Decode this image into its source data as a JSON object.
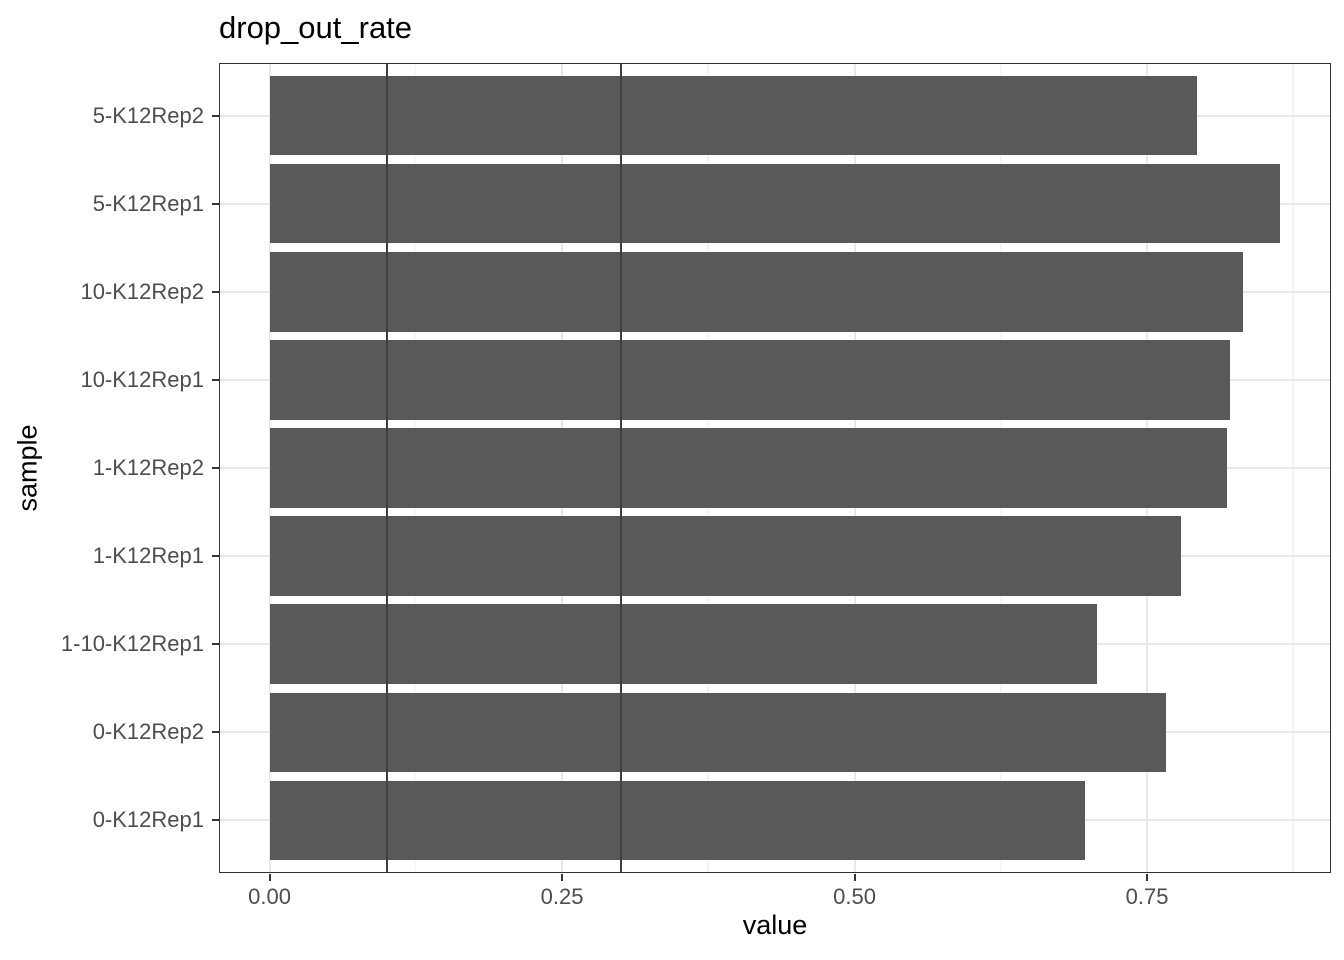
{
  "chart_data": {
    "type": "bar",
    "orientation": "horizontal",
    "title": "drop_out_rate",
    "xlabel": "value",
    "ylabel": "sample",
    "categories": [
      "5-K12Rep2",
      "5-K12Rep1",
      "10-K12Rep2",
      "10-K12Rep1",
      "1-K12Rep2",
      "1-K12Rep1",
      "1-10-K12Rep1",
      "0-K12Rep2",
      "0-K12Rep1"
    ],
    "values": [
      0.793,
      0.864,
      0.832,
      0.821,
      0.818,
      0.779,
      0.707,
      0.766,
      0.697
    ],
    "x_ticks": [
      {
        "value": 0.0,
        "label": "0.00"
      },
      {
        "value": 0.25,
        "label": "0.25"
      },
      {
        "value": 0.5,
        "label": "0.50"
      },
      {
        "value": 0.75,
        "label": "0.75"
      }
    ],
    "x_minor_ticks": [
      0.125,
      0.375,
      0.625,
      0.875
    ],
    "xlim": [
      -0.0432,
      0.9072
    ],
    "reference_lines": [
      0.1,
      0.3
    ],
    "bar_width_fraction": 0.9,
    "category_padding": 0.6,
    "grid": true,
    "legend": "none",
    "colors": {
      "bar_fill": "#595959",
      "reference_line": "#404040",
      "grid_major": "#e8e8e8",
      "grid_minor": "#f1f1f1",
      "panel_border": "#333333",
      "tick_label": "#4d4d4d",
      "title_text": "#000000"
    }
  }
}
